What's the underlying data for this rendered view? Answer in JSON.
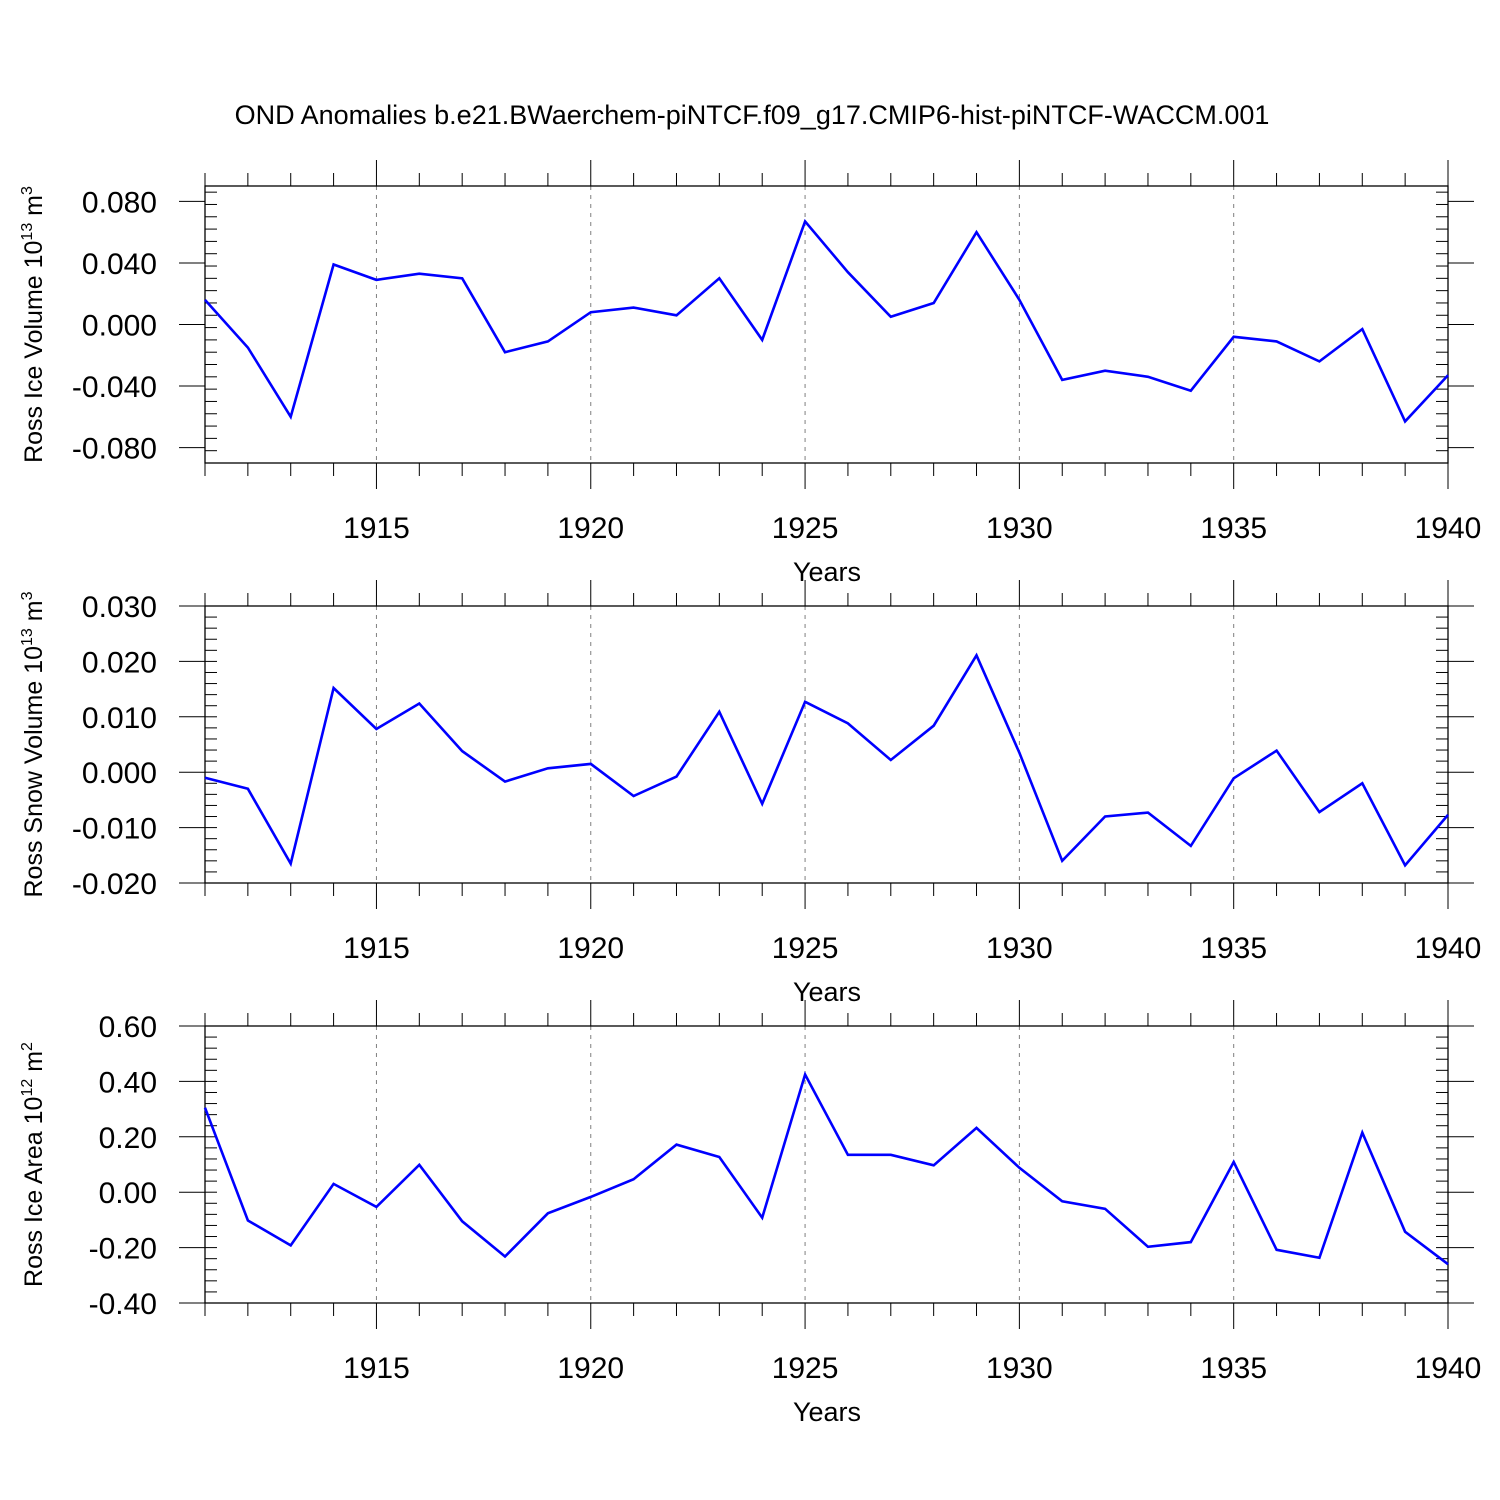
{
  "title": "OND Anomalies b.e21.BWaerchem-piNTCF.f09_g17.CMIP6-hist-piNTCF-WACCM.001",
  "line_color": "#0000ff",
  "grid_color": "#7f7f7f",
  "chart_data": [
    {
      "type": "line",
      "xlabel": "Years",
      "ylabel_main": "Ross Ice Volume 10",
      "ylabel_exp": "13",
      "ylabel_unit": " m",
      "ylabel_unit_exp": "3",
      "xlim": [
        1911,
        1940
      ],
      "ylim": [
        -0.09,
        0.09
      ],
      "xticks": [
        1915,
        1920,
        1925,
        1930,
        1935,
        1940
      ],
      "xtick_labels": [
        "1915",
        "1920",
        "1925",
        "1930",
        "1935",
        "1940"
      ],
      "yticks": [
        -0.08,
        -0.04,
        0.0,
        0.04,
        0.08
      ],
      "ytick_labels": [
        "-0.080",
        "-0.040",
        "0.000",
        "0.040",
        "0.080"
      ],
      "grid": "vertical dashed at major x ticks",
      "x": [
        1911,
        1912,
        1913,
        1914,
        1915,
        1916,
        1917,
        1918,
        1919,
        1920,
        1921,
        1922,
        1923,
        1924,
        1925,
        1926,
        1927,
        1928,
        1929,
        1930,
        1931,
        1932,
        1933,
        1934,
        1935,
        1936,
        1937,
        1938,
        1939,
        1940
      ],
      "series": [
        {
          "values": [
            0.016,
            -0.015,
            -0.06,
            0.039,
            0.029,
            0.033,
            0.03,
            -0.018,
            -0.011,
            0.008,
            0.011,
            0.006,
            0.03,
            -0.01,
            0.067,
            0.034,
            0.005,
            0.014,
            0.06,
            0.016,
            -0.036,
            -0.03,
            -0.034,
            -0.043,
            -0.008,
            -0.011,
            -0.024,
            -0.003,
            -0.063,
            -0.033
          ]
        }
      ]
    },
    {
      "type": "line",
      "xlabel": "Years",
      "ylabel_main": "Ross Snow Volume 10",
      "ylabel_exp": "13",
      "ylabel_unit": " m",
      "ylabel_unit_exp": "3",
      "xlim": [
        1911,
        1940
      ],
      "ylim": [
        -0.02,
        0.03
      ],
      "xticks": [
        1915,
        1920,
        1925,
        1930,
        1935,
        1940
      ],
      "xtick_labels": [
        "1915",
        "1920",
        "1925",
        "1930",
        "1935",
        "1940"
      ],
      "yticks": [
        -0.02,
        -0.01,
        0.0,
        0.01,
        0.02,
        0.03
      ],
      "ytick_labels": [
        "-0.020",
        "-0.010",
        "0.000",
        "0.010",
        "0.020",
        "0.030"
      ],
      "grid": "vertical dashed at major x ticks",
      "x": [
        1911,
        1912,
        1913,
        1914,
        1915,
        1916,
        1917,
        1918,
        1919,
        1920,
        1921,
        1922,
        1923,
        1924,
        1925,
        1926,
        1927,
        1928,
        1929,
        1930,
        1931,
        1932,
        1933,
        1934,
        1935,
        1936,
        1937,
        1938,
        1939,
        1940
      ],
      "series": [
        {
          "values": [
            -0.001,
            -0.003,
            -0.0165,
            0.0152,
            0.0078,
            0.0124,
            0.0038,
            -0.0017,
            0.0007,
            0.0015,
            -0.0043,
            -0.0008,
            0.0109,
            -0.0057,
            0.0127,
            0.0088,
            0.0022,
            0.0084,
            0.0211,
            0.0035,
            -0.016,
            -0.008,
            -0.0073,
            -0.0133,
            -0.0011,
            0.0039,
            -0.0072,
            -0.002,
            -0.0168,
            -0.0077
          ]
        }
      ]
    },
    {
      "type": "line",
      "xlabel": "Years",
      "ylabel_main": "Ross Ice Area 10",
      "ylabel_exp": "12",
      "ylabel_unit": " m",
      "ylabel_unit_exp": "2",
      "xlim": [
        1911,
        1940
      ],
      "ylim": [
        -0.4,
        0.6
      ],
      "xticks": [
        1915,
        1920,
        1925,
        1930,
        1935,
        1940
      ],
      "xtick_labels": [
        "1915",
        "1920",
        "1925",
        "1930",
        "1935",
        "1940"
      ],
      "yticks": [
        -0.4,
        -0.2,
        0.0,
        0.2,
        0.4,
        0.6
      ],
      "ytick_labels": [
        "-0.40",
        "-0.20",
        "0.00",
        "0.20",
        "0.40",
        "0.60"
      ],
      "grid": "vertical dashed at major x ticks",
      "x": [
        1911,
        1912,
        1913,
        1914,
        1915,
        1916,
        1917,
        1918,
        1919,
        1920,
        1921,
        1922,
        1923,
        1924,
        1925,
        1926,
        1927,
        1928,
        1929,
        1930,
        1931,
        1932,
        1933,
        1934,
        1935,
        1936,
        1937,
        1938,
        1939,
        1940
      ],
      "series": [
        {
          "values": [
            0.305,
            -0.102,
            -0.192,
            0.03,
            -0.053,
            0.099,
            -0.105,
            -0.232,
            -0.076,
            -0.017,
            0.047,
            0.172,
            0.127,
            -0.092,
            0.425,
            0.135,
            0.135,
            0.097,
            0.232,
            0.088,
            -0.033,
            -0.06,
            -0.197,
            -0.18,
            0.109,
            -0.208,
            -0.237,
            0.215,
            -0.143,
            -0.26
          ]
        }
      ]
    }
  ]
}
